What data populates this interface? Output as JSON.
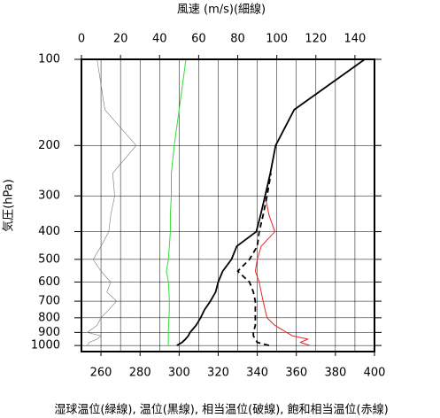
{
  "chart_data": {
    "type": "sounding",
    "x2_label": "風速 (m/s)(細線)",
    "y_label": "気圧(hPa)",
    "caption": "湿球温位(緑線), 温位(黒線), 相当温位(破線), 飽和相当温位(赤線)",
    "xlim": [
      250,
      400
    ],
    "xticks": [
      260,
      280,
      300,
      320,
      340,
      360,
      380,
      400
    ],
    "x_minor_ticks": [
      250,
      270,
      290,
      310,
      330,
      350,
      370,
      390
    ],
    "x2lim": [
      0,
      150
    ],
    "x2ticks": [
      0,
      20,
      40,
      60,
      80,
      100,
      120,
      140
    ],
    "ylim": [
      1050,
      100
    ],
    "yticks": [
      100,
      200,
      300,
      400,
      500,
      600,
      700,
      800,
      900,
      1000
    ],
    "log_scale_y": true,
    "grid": true,
    "pressure": [
      1000,
      975,
      950,
      925,
      900,
      850,
      800,
      750,
      700,
      650,
      600,
      550,
      500,
      450,
      400,
      350,
      300,
      250,
      200,
      150,
      100
    ],
    "series": [
      {
        "color": "#777777",
        "axis": "x2",
        "width": 0.6,
        "dash": false,
        "values": [
          3,
          4,
          8,
          10,
          3,
          8,
          10,
          14,
          18,
          13,
          15,
          10,
          6,
          10,
          14,
          15,
          17,
          16,
          28,
          12,
          8
        ]
      },
      {
        "color": "#33dd33",
        "axis": "x",
        "width": 1,
        "dash": false,
        "values": [
          294.5,
          294.5,
          294.5,
          294.5,
          294.5,
          294.6,
          294.8,
          295,
          295,
          294.8,
          294.5,
          293.5,
          294.5,
          295,
          295.5,
          295.5,
          296,
          296,
          297.5,
          300,
          303.5
        ]
      },
      {
        "color": "#ee2222",
        "axis": "x",
        "width": 1,
        "dash": false,
        "values": [
          367,
          362,
          366,
          358,
          355,
          349,
          345,
          344,
          343,
          342,
          341,
          339,
          340,
          342,
          349,
          346,
          344,
          346.5,
          349.4,
          358.9,
          395
        ]
      },
      {
        "color": "#000000",
        "axis": "x",
        "width": 1.8,
        "dash": true,
        "values": [
          346,
          340,
          339,
          338,
          338,
          339,
          339,
          339,
          339,
          338,
          336,
          330,
          336,
          340,
          341,
          343,
          345,
          347,
          null,
          null,
          null
        ]
      },
      {
        "color": "#000000",
        "axis": "x",
        "width": 1.8,
        "dash": false,
        "values": [
          298.8,
          301.5,
          303.3,
          304.7,
          305.6,
          308.7,
          311,
          313,
          316,
          318.7,
          320,
          322.3,
          326.8,
          329.5,
          339.5,
          341.7,
          344,
          346.7,
          349.4,
          358.9,
          395
        ]
      }
    ]
  }
}
